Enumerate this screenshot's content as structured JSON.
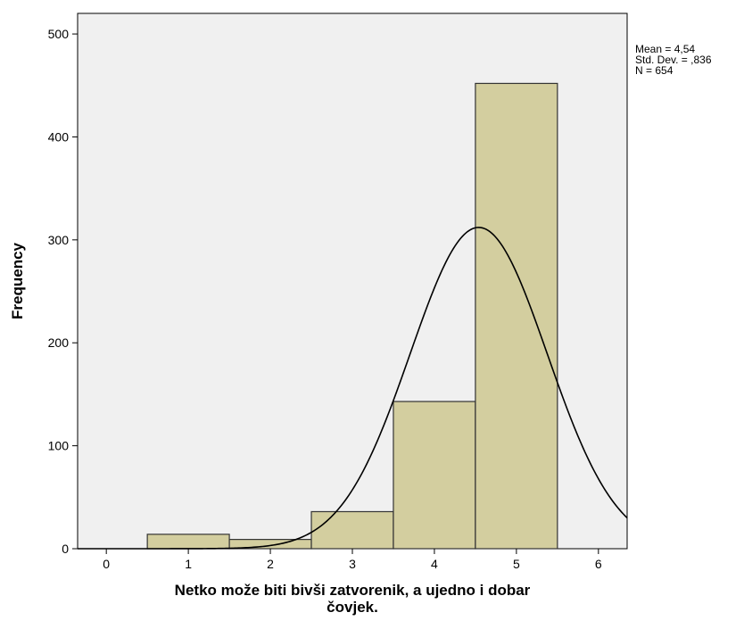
{
  "chart_data": {
    "type": "bar",
    "subtype": "histogram-with-normal-curve",
    "bins": [
      {
        "center": 1,
        "value": 14
      },
      {
        "center": 2,
        "value": 9
      },
      {
        "center": 3,
        "value": 36
      },
      {
        "center": 4,
        "value": 143
      },
      {
        "center": 5,
        "value": 452
      }
    ],
    "bin_width": 1,
    "xticks": [
      0,
      1,
      2,
      3,
      4,
      5,
      6
    ],
    "yticks": [
      0,
      100,
      200,
      300,
      400,
      500
    ],
    "xlim": [
      -0.35,
      6.35
    ],
    "ylim": [
      0,
      520
    ],
    "xlabel_lines": [
      "Netko može biti bivši zatvorenik, a ujedno i dobar",
      "čovjek."
    ],
    "ylabel": "Frequency",
    "stats_lines": [
      "Mean = 4,54",
      "Std. Dev. = ,836",
      "N = 654"
    ],
    "normal_curve": {
      "mean": 4.54,
      "sd": 0.836,
      "n": 654
    },
    "grid": false,
    "plot_background": "#f0f0f0",
    "bar_fill": "#d3ce9f",
    "bar_stroke": "#333333",
    "curve_color": "#000000"
  }
}
